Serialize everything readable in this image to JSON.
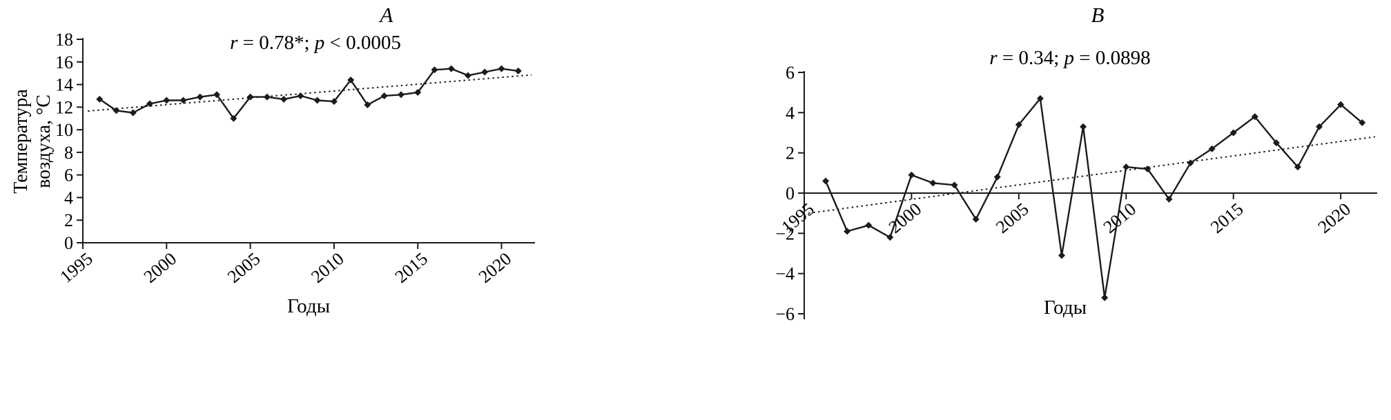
{
  "figure": {
    "background": "#ffffff",
    "ink_color": "#1b1b1b"
  },
  "charts": {
    "A": {
      "title": "А",
      "ann": {
        "r": "r",
        "r_rest": " = 0.78*; ",
        "p": "p",
        "p_rest": " < 0.0005"
      },
      "ylabel_line1": "Температура",
      "ylabel_line2": "воздуха, °C",
      "xlabel": "Годы"
    },
    "B": {
      "title": "В",
      "ann": {
        "r": "r",
        "r_rest": " = 0.34; ",
        "p": "p",
        "p_rest": " = 0.0898"
      },
      "xlabel": "Годы"
    }
  },
  "chart_data": [
    {
      "id": "A",
      "type": "line",
      "title": "А",
      "annotation": "r = 0.78*; p < 0.0005",
      "xlabel": "Годы",
      "ylabel": "Температура воздуха, °C",
      "marker": "diamond",
      "line_color": "#1b1b1b",
      "trend_style": "dotted",
      "xlim": [
        1995,
        2022
      ],
      "ylim": [
        0,
        18
      ],
      "ytick_step": 2,
      "x_axis_at": 0,
      "xticks": [
        1995,
        2000,
        2005,
        2010,
        2015,
        2020
      ],
      "x": [
        1996,
        1997,
        1998,
        1999,
        2000,
        2001,
        2002,
        2003,
        2004,
        2005,
        2006,
        2007,
        2008,
        2009,
        2010,
        2011,
        2012,
        2013,
        2014,
        2015,
        2016,
        2017,
        2018,
        2019,
        2020,
        2021
      ],
      "values": [
        12.7,
        11.7,
        11.5,
        12.3,
        12.6,
        12.6,
        12.9,
        13.1,
        11.0,
        12.9,
        12.9,
        12.7,
        13.0,
        12.6,
        12.5,
        14.4,
        12.2,
        13.0,
        13.1,
        13.3,
        15.3,
        15.4,
        14.8,
        15.1,
        15.4,
        15.2
      ],
      "trend": {
        "x": [
          1995.3,
          2021.8
        ],
        "y": [
          11.65,
          14.85
        ]
      }
    },
    {
      "id": "B",
      "type": "line",
      "title": "В",
      "annotation": "r = 0.34; p = 0.0898",
      "xlabel": "Годы",
      "ylabel": "",
      "marker": "diamond",
      "line_color": "#1b1b1b",
      "trend_style": "dotted",
      "xlim": [
        1995,
        2021.7
      ],
      "ylim": [
        -6,
        6
      ],
      "ytick_step": 2,
      "x_axis_at": 0,
      "xticks": [
        1995,
        2000,
        2005,
        2010,
        2015,
        2020
      ],
      "x": [
        1996,
        1997,
        1998,
        1999,
        2000,
        2001,
        2002,
        2003,
        2004,
        2005,
        2006,
        2007,
        2008,
        2009,
        2010,
        2011,
        2012,
        2013,
        2014,
        2015,
        2016,
        2017,
        2018,
        2019,
        2020,
        2021
      ],
      "values": [
        0.6,
        -1.9,
        -1.6,
        -2.2,
        0.9,
        0.5,
        0.4,
        -1.3,
        0.8,
        3.4,
        4.7,
        -3.1,
        3.3,
        -5.2,
        1.3,
        1.2,
        -0.3,
        1.5,
        2.2,
        3.0,
        3.8,
        2.5,
        1.3,
        3.3,
        4.4,
        3.5
      ],
      "trend": {
        "x": [
          1995.2,
          2021.6
        ],
        "y": [
          -1.0,
          2.8
        ]
      }
    }
  ]
}
